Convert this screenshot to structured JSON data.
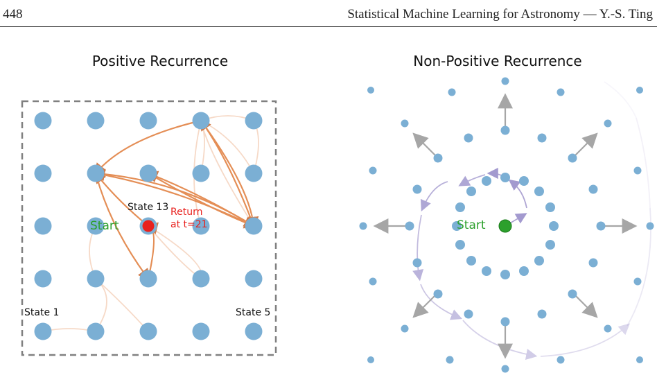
{
  "header": {
    "page_number": "448",
    "running_head": "Statistical Machine Learning for Astronomy — Y.-S. Ting"
  },
  "left_panel": {
    "title": "Positive Recurrence",
    "start_label": "Start",
    "state13_label": "State 13",
    "return_label_line1": "Return",
    "return_label_line2": "at t=21",
    "state1_label": "State 1",
    "state5_label": "State 5"
  },
  "right_panel": {
    "title": "Non-Positive Recurrence",
    "start_label": "Start"
  },
  "colors": {
    "node": "#7bafd4",
    "path": "#e07b39",
    "current": "#e8211e",
    "start_text": "#2ca02c",
    "start_node": "#2ca02c",
    "return_text": "#e8211e",
    "walk": "#9a8fc9",
    "arrow": "#a6a6a6",
    "box": "#808080"
  },
  "icons": {
    "outward_arrow": "arrow-icon"
  }
}
